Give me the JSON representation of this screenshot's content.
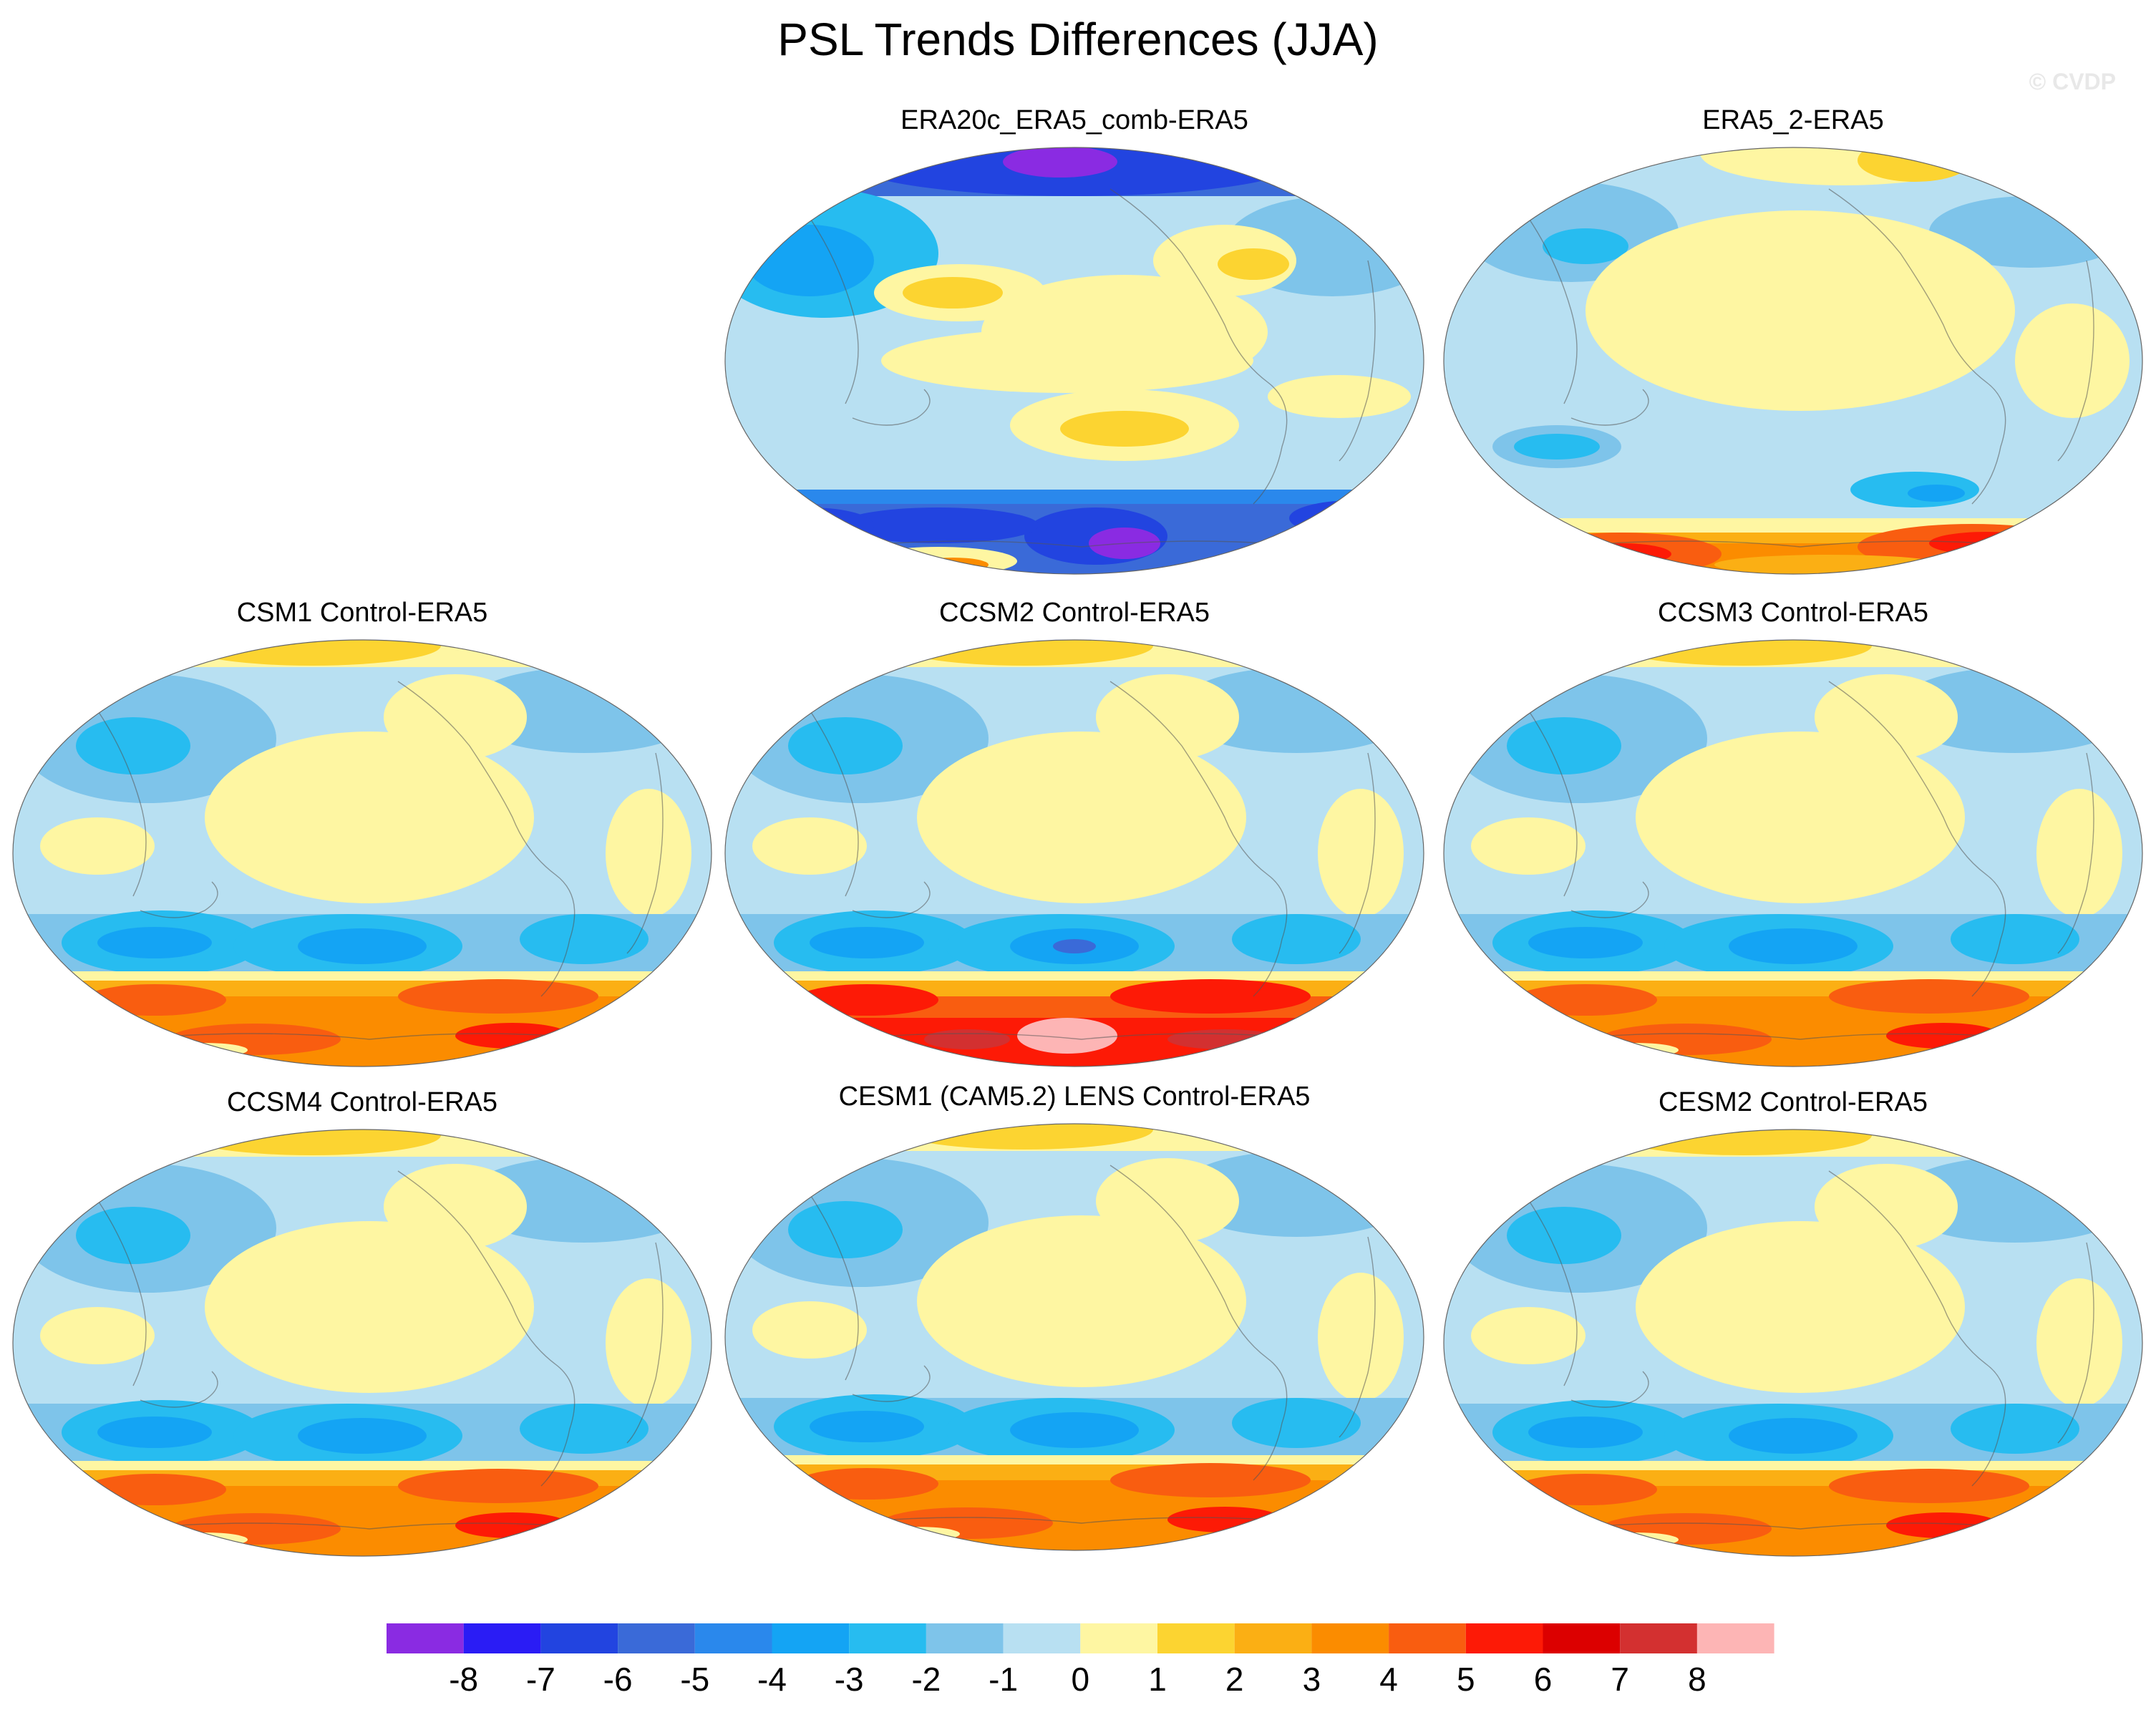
{
  "figure": {
    "title": "PSL Trends Differences (JJA)",
    "watermark": "© CVDP"
  },
  "panels": [
    {
      "id": "era20c",
      "title": "ERA20c_ERA5_comb-ERA5",
      "style": "reanalysis_strong"
    },
    {
      "id": "era5_2",
      "title": "ERA5_2-ERA5",
      "style": "reanalysis_weak"
    },
    {
      "id": "csm1",
      "title": "CSM1 Control-ERA5",
      "style": "model_orange"
    },
    {
      "id": "ccsm2",
      "title": "CCSM2 Control-ERA5",
      "style": "model_red"
    },
    {
      "id": "ccsm3",
      "title": "CCSM3 Control-ERA5",
      "style": "model_orange"
    },
    {
      "id": "ccsm4",
      "title": "CCSM4 Control-ERA5",
      "style": "model_orange"
    },
    {
      "id": "cesm1",
      "title": "CESM1 (CAM5.2) LENS Control-ERA5",
      "style": "model_orange"
    },
    {
      "id": "cesm2",
      "title": "CESM2 Control-ERA5",
      "style": "model_orange"
    }
  ],
  "colorbar": {
    "labels": [
      "-8",
      "-7",
      "-6",
      "-5",
      "-4",
      "-3",
      "-2",
      "-1",
      "0",
      "1",
      "2",
      "3",
      "4",
      "5",
      "6",
      "7",
      "8"
    ],
    "colors": [
      "#8a2be2",
      "#2a1cf5",
      "#2244e0",
      "#3a6ad8",
      "#2a88ec",
      "#14a4f4",
      "#27bcf0",
      "#7ec4ea",
      "#b8e0f2",
      "#fef6a2",
      "#fcd431",
      "#fbaf14",
      "#fb8c00",
      "#f95d10",
      "#fd1a06",
      "#dc0000",
      "#d33030",
      "#fdb5b5"
    ]
  },
  "colors": {
    "c_m8": "#8a2be2",
    "c_m7": "#2a1cf5",
    "c_m6": "#2244e0",
    "c_m5": "#3a6ad8",
    "c_m4": "#2a88ec",
    "c_m3": "#14a4f4",
    "c_m2": "#27bcf0",
    "c_m1": "#7ec4ea",
    "c_0": "#b8e0f2",
    "c_1": "#fef6a2",
    "c_2": "#fcd431",
    "c_3": "#fbaf14",
    "c_4": "#fb8c00",
    "c_5": "#f95d10",
    "c_6": "#fd1a06",
    "c_7": "#dc0000",
    "c_8": "#d33030",
    "c_9": "#fdb5b5"
  }
}
